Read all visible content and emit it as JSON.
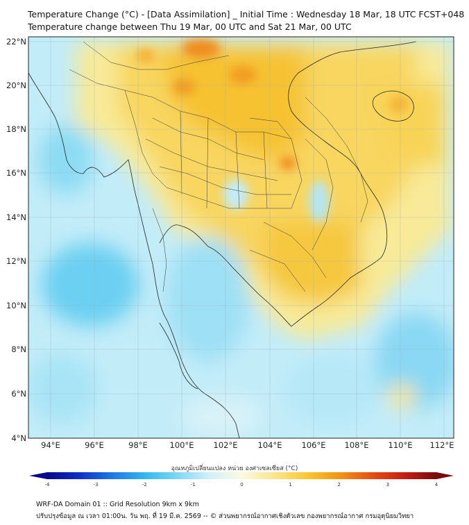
{
  "header": {
    "title_line1": "Temperature Change (°C) - [Data Assimilation] _ Initial Time : Wednesday 18 Mar, 18 UTC FCST+048",
    "title_line2": "Temperature change between Thu 19 Mar, 00 UTC and Sat 21 Mar, 00 UTC"
  },
  "axes": {
    "lat_labels": [
      "22°N",
      "20°N",
      "18°N",
      "16°N",
      "14°N",
      "12°N",
      "10°N",
      "8°N",
      "6°N",
      "4°N"
    ],
    "lon_labels": [
      "94°E",
      "96°E",
      "98°E",
      "100°E",
      "102°E",
      "104°E",
      "106°E",
      "108°E",
      "110°E",
      "112°E"
    ]
  },
  "colorbar": {
    "title": "อุณหภูมิเปลี่ยนแปลง หน่วย องศาเซลเซียส (°C)",
    "ticks": [
      "-4",
      "-3",
      "-2",
      "-1",
      "0",
      "1",
      "2",
      "3",
      "4"
    ],
    "range": [
      -4,
      4
    ],
    "colors_low_to_high": [
      "#08088a",
      "#1030c8",
      "#1e78e6",
      "#34b6f0",
      "#7ad8f6",
      "#d2f0fa",
      "#fafae0",
      "#fae68c",
      "#f8c832",
      "#f09614",
      "#e65012",
      "#c81e14",
      "#7a0a0a"
    ]
  },
  "footer": {
    "line1": "WRF-DA Domain 01 :: Grid Resolution 9km x 9km",
    "line2": "ปรับปรุงข้อมูล ณ เวลา 01:00น. วัน พฤ. ที่ 19 มี.ค. 2569 -- © ส่วนพยากรณ์อากาศเชิงตัวเลข กองพยากรณ์อากาศ กรมอุตุนิยมวิทยา"
  }
}
